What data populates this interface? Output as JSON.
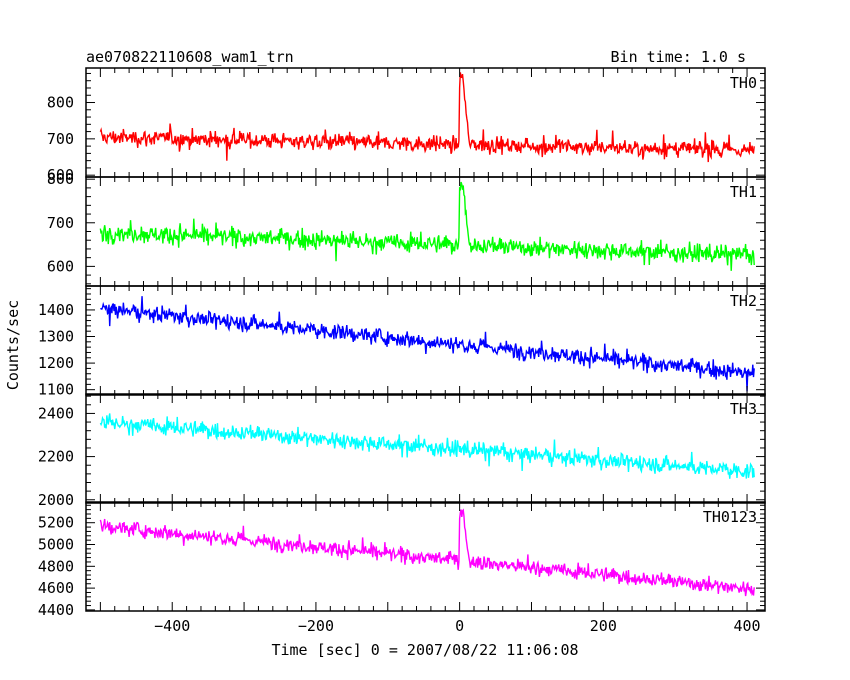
{
  "chart_data": {
    "type": "line",
    "title": "ae070822110608_wam1_trn",
    "subtitle": "Bin time: 1.0 s",
    "xlabel": "Time [sec] 0 = 2007/08/22 11:06:08",
    "ylabel": "Counts/sec",
    "xlim": [
      -520,
      425
    ],
    "x_ticks": [
      -400,
      -200,
      0,
      200,
      400
    ],
    "x_sampling": {
      "start": -500,
      "end": 410,
      "step": 1
    },
    "grid": false,
    "panels": [
      {
        "name": "TH0",
        "color": "#ff0000",
        "ylim": [
          595,
          895
        ],
        "y_ticks": [
          600,
          700,
          800
        ],
        "mean_start": 705,
        "mean_end": 668,
        "noise": 28,
        "burst": {
          "start": 0,
          "end": 14,
          "peak": 885
        }
      },
      {
        "name": "TH1",
        "color": "#00ff00",
        "ylim": [
          555,
          805
        ],
        "y_ticks": [
          600,
          700,
          800
        ],
        "mean_start": 678,
        "mean_end": 625,
        "noise": 26,
        "burst": {
          "start": 0,
          "end": 14,
          "peak": 800
        }
      },
      {
        "name": "TH2",
        "color": "#0000ff",
        "ylim": [
          1080,
          1490
        ],
        "y_ticks": [
          1100,
          1200,
          1300,
          1400
        ],
        "mean_start": 1405,
        "mean_end": 1160,
        "noise": 38,
        "burst": null
      },
      {
        "name": "TH3",
        "color": "#00ffff",
        "ylim": [
          1985,
          2490
        ],
        "y_ticks": [
          2000,
          2200,
          2400
        ],
        "mean_start": 2360,
        "mean_end": 2130,
        "noise": 48,
        "burst": null
      },
      {
        "name": "TH0123",
        "color": "#ff00ff",
        "ylim": [
          4390,
          5390
        ],
        "y_ticks": [
          4400,
          4600,
          4800,
          5000,
          5200
        ],
        "mean_start": 5170,
        "mean_end": 4590,
        "noise": 85,
        "burst": {
          "start": 0,
          "end": 14,
          "peak": 5330
        }
      }
    ]
  }
}
